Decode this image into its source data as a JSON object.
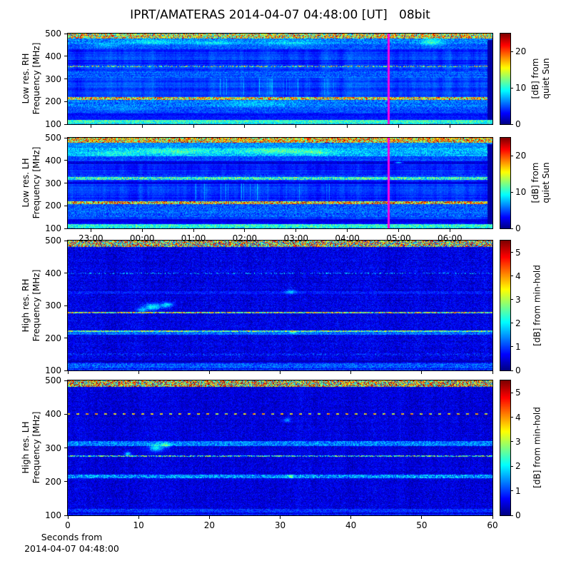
{
  "title": "IPRT/AMATERAS 2014-04-07 04:48:00 [UT]   08bit",
  "footer_xlabel": "Seconds from\n2014-04-07 04:48:00",
  "colors": {
    "background": "#ffffff",
    "frame": "#000000",
    "text": "#000000",
    "marker_line": "#ff00e0",
    "colormap": "jet"
  },
  "chart_data": [
    {
      "type": "heatmap",
      "id": "low-res-rh",
      "ylabel": "Low res. RH\nFrequency [MHz]",
      "ylim": [
        100,
        500
      ],
      "yticks": [
        500,
        400,
        300,
        200,
        100
      ],
      "xaxis": {
        "unit": "hours UT",
        "range": [
          22.55,
          30.83
        ],
        "show_labels": false,
        "ticks": [
          {
            "v": 23,
            "label": "23:00"
          },
          {
            "v": 24,
            "label": "00:00"
          },
          {
            "v": 25,
            "label": "01:00"
          },
          {
            "v": 26,
            "label": "02:00"
          },
          {
            "v": 27,
            "label": "03:00"
          },
          {
            "v": 28,
            "label": "04:00"
          },
          {
            "v": 29,
            "label": "05:00"
          },
          {
            "v": 30,
            "label": "06:00"
          }
        ]
      },
      "colorbar": {
        "vmax": 25,
        "ticks": [
          0,
          10,
          20
        ],
        "label": "[dB] from\nquiet Sun"
      },
      "marker_time": 28.8,
      "right_gap_strip": true,
      "noise": {
        "base": 4.3,
        "row": 1.1,
        "col": 0.5,
        "pix": 0.7,
        "seed": 7
      },
      "bands": [
        {
          "f": [
            479,
            501
          ],
          "base": 15.0,
          "jitter": 9.0
        },
        {
          "f": [
            452,
            479
          ],
          "base": 6.3,
          "jitter": 2.2
        },
        {
          "f": [
            430,
            452
          ],
          "base": 5.2,
          "jitter": 1.6
        },
        {
          "f": [
            352,
            358
          ],
          "base": 12.0,
          "jitter": 7.0,
          "prob": 0.6
        },
        {
          "f": [
            306,
            336
          ],
          "base": 5.4,
          "jitter": 1.6
        },
        {
          "f": [
            206,
            221
          ],
          "base": 16.0,
          "jitter": 8.0
        },
        {
          "f": [
            176,
            206
          ],
          "base": 5.8,
          "jitter": 2.2
        },
        {
          "f": [
            150,
            176
          ],
          "base": 4.8,
          "jitter": 1.6
        },
        {
          "f": [
            120,
            148
          ],
          "base": 3.4,
          "jitter": 1.0
        },
        {
          "f": [
            104,
            119
          ],
          "base": 10.5,
          "jitter": 3.0
        },
        {
          "f": [
            100,
            104
          ],
          "base": 7.0,
          "jitter": 2.0
        }
      ],
      "streaks": [
        {
          "t": [
            25.4,
            27.8
          ],
          "f": [
            228,
            302
          ],
          "amp": 3.2,
          "density": 0.15
        }
      ],
      "blobs": [
        {
          "t": 24.2,
          "f": 462,
          "rt": 0.5,
          "rf": 12,
          "a": 3.0
        },
        {
          "t": 25.4,
          "f": 458,
          "rt": 0.45,
          "rf": 10,
          "a": 3.0
        },
        {
          "t": 26.9,
          "f": 456,
          "rt": 0.6,
          "rf": 12,
          "a": 2.5
        },
        {
          "t": 23.3,
          "f": 448,
          "rt": 0.3,
          "rf": 9,
          "a": 2.5
        },
        {
          "t": 29.65,
          "f": 462,
          "rt": 0.22,
          "rf": 16,
          "a": 4.5
        },
        {
          "t": 26.2,
          "f": 190,
          "rt": 0.8,
          "rf": 14,
          "a": 2.0
        },
        {
          "t": 23.6,
          "f": 168,
          "rt": 0.6,
          "rf": 10,
          "a": 1.8
        }
      ]
    },
    {
      "type": "heatmap",
      "id": "low-res-lh",
      "ylabel": "Low res. LH\nFrequency [MHz]",
      "ylim": [
        100,
        500
      ],
      "yticks": [
        500,
        400,
        300,
        200,
        100
      ],
      "xaxis": {
        "unit": "hours UT",
        "range": [
          22.55,
          30.83
        ],
        "show_labels": true,
        "ticks": [
          {
            "v": 23,
            "label": "23:00"
          },
          {
            "v": 24,
            "label": "00:00"
          },
          {
            "v": 25,
            "label": "01:00"
          },
          {
            "v": 26,
            "label": "02:00"
          },
          {
            "v": 27,
            "label": "03:00"
          },
          {
            "v": 28,
            "label": "04:00"
          },
          {
            "v": 29,
            "label": "05:00"
          },
          {
            "v": 30,
            "label": "06:00"
          }
        ]
      },
      "colorbar": {
        "vmax": 25,
        "ticks": [
          0,
          10,
          20
        ],
        "label": "[dB] from\nquiet Sun"
      },
      "marker_time": 28.8,
      "right_gap_strip": true,
      "noise": {
        "base": 4.2,
        "row": 1.0,
        "col": 0.5,
        "pix": 0.7,
        "seed": 13
      },
      "bands": [
        {
          "f": [
            478,
            501
          ],
          "base": 17.0,
          "jitter": 8.0
        },
        {
          "f": [
            455,
            478
          ],
          "base": 6.5,
          "jitter": 2.0
        },
        {
          "f": [
            418,
            455
          ],
          "base": 7.5,
          "jitter": 2.5
        },
        {
          "f": [
            398,
            418
          ],
          "base": 5.2,
          "jitter": 1.5
        },
        {
          "f": [
            383,
            397
          ],
          "base": 2.3,
          "jitter": 0.9
        },
        {
          "f": [
            328,
            340
          ],
          "base": 4.5,
          "jitter": 1.4
        },
        {
          "f": [
            313,
            328
          ],
          "base": 10.5,
          "jitter": 4.5
        },
        {
          "f": [
            296,
            304
          ],
          "base": 2.2,
          "jitter": 0.8
        },
        {
          "f": [
            206,
            221
          ],
          "base": 16.5,
          "jitter": 8.5
        },
        {
          "f": [
            150,
            206
          ],
          "base": 5.4,
          "jitter": 2.0
        },
        {
          "f": [
            124,
            140
          ],
          "base": 2.4,
          "jitter": 0.9
        },
        {
          "f": [
            104,
            119
          ],
          "base": 10.5,
          "jitter": 3.0
        },
        {
          "f": [
            100,
            104
          ],
          "base": 8.0,
          "jitter": 2.5
        }
      ],
      "streaks": [
        {
          "t": [
            25.0,
            27.7
          ],
          "f": [
            226,
            300
          ],
          "amp": 3.4,
          "density": 0.18
        }
      ],
      "blobs": [
        {
          "t": 24.7,
          "f": 440,
          "rt": 0.9,
          "rf": 13,
          "a": 3.5
        },
        {
          "t": 26.6,
          "f": 442,
          "rt": 0.7,
          "rf": 12,
          "a": 4.0
        },
        {
          "t": 27.4,
          "f": 436,
          "rt": 0.4,
          "rf": 10,
          "a": 3.0
        },
        {
          "t": 23.4,
          "f": 430,
          "rt": 0.5,
          "rf": 10,
          "a": 2.5
        },
        {
          "t": 29.0,
          "f": 390,
          "rt": 0.07,
          "rf": 3,
          "a": 7.0
        }
      ]
    },
    {
      "type": "heatmap",
      "id": "high-res-rh",
      "ylabel": "High res. RH\nFrequency [MHz]",
      "ylim": [
        100,
        500
      ],
      "yticks": [
        500,
        400,
        300,
        200,
        100
      ],
      "xaxis": {
        "unit": "seconds",
        "range": [
          0,
          60
        ],
        "show_labels": false,
        "ticks": [
          {
            "v": 0,
            "label": "0"
          },
          {
            "v": 10,
            "label": "10"
          },
          {
            "v": 20,
            "label": "20"
          },
          {
            "v": 30,
            "label": "30"
          },
          {
            "v": 40,
            "label": "40"
          },
          {
            "v": 50,
            "label": "50"
          },
          {
            "v": 60,
            "label": "60"
          }
        ]
      },
      "colorbar": {
        "vmax": 5.5,
        "ticks": [
          0,
          1,
          2,
          3,
          4,
          5
        ],
        "label": "[dB] from min-hold"
      },
      "marker_time": null,
      "right_gap_strip": false,
      "noise": {
        "base": 0.55,
        "row": 0.07,
        "col": 0.05,
        "pix": 0.38,
        "seed": 21
      },
      "bands": [
        {
          "f": [
            481,
            501
          ],
          "base": 3.1,
          "jitter": 2.4
        },
        {
          "f": [
            397,
            401
          ],
          "base": 1.7,
          "jitter": 0.6,
          "prob": 0.28
        },
        {
          "f": [
            336,
            344
          ],
          "base": 0.8,
          "jitter": 0.35
        },
        {
          "f": [
            275,
            280
          ],
          "base": 3.0,
          "jitter": 1.6,
          "prob": 0.92
        },
        {
          "f": [
            219,
            224
          ],
          "base": 2.5,
          "jitter": 1.3
        },
        {
          "f": [
            209,
            219
          ],
          "base": 1.25,
          "jitter": 0.5
        },
        {
          "f": [
            147,
            152
          ],
          "base": 1.1,
          "jitter": 0.4,
          "prob": 0.3
        },
        {
          "f": [
            126,
            130
          ],
          "base": 0.25,
          "jitter": 0.1
        },
        {
          "f": [
            107,
            122
          ],
          "base": 1.15,
          "jitter": 0.5
        },
        {
          "f": [
            100,
            105
          ],
          "base": 0.95,
          "jitter": 0.4
        }
      ],
      "streaks": [],
      "blobs": [
        {
          "t": 12.0,
          "f": 296,
          "rt": 1.2,
          "rf": 10,
          "a": 1.6
        },
        {
          "t": 14.0,
          "f": 302,
          "rt": 0.8,
          "rf": 8,
          "a": 1.4
        },
        {
          "t": 10.5,
          "f": 286,
          "rt": 0.6,
          "rf": 6,
          "a": 1.2
        },
        {
          "t": 31.5,
          "f": 342,
          "rt": 0.8,
          "rf": 8,
          "a": 0.9
        },
        {
          "t": 31.8,
          "f": 218,
          "rt": 0.5,
          "rf": 5,
          "a": 1.2
        }
      ]
    },
    {
      "type": "heatmap",
      "id": "high-res-lh",
      "ylabel": "High res. LH\nFrequency [MHz]",
      "ylim": [
        100,
        500
      ],
      "yticks": [
        500,
        400,
        300,
        200,
        100
      ],
      "xaxis": {
        "unit": "seconds",
        "range": [
          0,
          60
        ],
        "show_labels": true,
        "ticks": [
          {
            "v": 0,
            "label": "0"
          },
          {
            "v": 10,
            "label": "10"
          },
          {
            "v": 20,
            "label": "20"
          },
          {
            "v": 30,
            "label": "30"
          },
          {
            "v": 40,
            "label": "40"
          },
          {
            "v": 50,
            "label": "50"
          },
          {
            "v": 60,
            "label": "60"
          }
        ]
      },
      "colorbar": {
        "vmax": 5.5,
        "ticks": [
          0,
          1,
          2,
          3,
          4,
          5
        ],
        "label": "[dB] from min-hold"
      },
      "marker_time": null,
      "right_gap_strip": false,
      "noise": {
        "base": 0.5,
        "row": 0.06,
        "col": 0.05,
        "pix": 0.35,
        "seed": 42
      },
      "bands": [
        {
          "f": [
            481,
            501
          ],
          "base": 3.4,
          "jitter": 2.3
        },
        {
          "f": [
            398,
            402
          ],
          "base": 3.6,
          "jitter": 1.0,
          "dash": [
            13,
            4
          ]
        },
        {
          "f": [
            306,
            321
          ],
          "base": 1.35,
          "jitter": 0.6
        },
        {
          "f": [
            273,
            278
          ],
          "base": 2.1,
          "jitter": 1.5,
          "prob": 0.85
        },
        {
          "f": [
            211,
            220
          ],
          "base": 1.5,
          "jitter": 0.8
        },
        {
          "f": [
            148,
            151
          ],
          "base": 0.85,
          "jitter": 0.3,
          "prob": 0.22
        },
        {
          "f": [
            108,
            119
          ],
          "base": 0.95,
          "jitter": 0.4
        },
        {
          "f": [
            100,
            104
          ],
          "base": 0.85,
          "jitter": 0.3
        }
      ],
      "streaks": [],
      "blobs": [
        {
          "t": 8.5,
          "f": 282,
          "rt": 0.5,
          "rf": 6,
          "a": 1.3
        },
        {
          "t": 12.5,
          "f": 300,
          "rt": 1.0,
          "rf": 10,
          "a": 1.5
        },
        {
          "t": 14.0,
          "f": 308,
          "rt": 0.6,
          "rf": 7,
          "a": 1.3
        },
        {
          "t": 31.0,
          "f": 382,
          "rt": 0.5,
          "rf": 6,
          "a": 1.0
        },
        {
          "t": 31.5,
          "f": 215,
          "rt": 0.5,
          "rf": 5,
          "a": 1.1
        }
      ]
    }
  ]
}
